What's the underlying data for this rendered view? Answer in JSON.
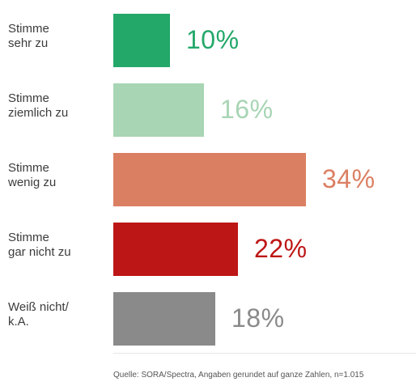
{
  "chart_data": {
    "type": "bar",
    "orientation": "horizontal",
    "categories": [
      "Stimme\nsehr zu",
      "Stimme\nziemlich zu",
      "Stimme\nwenig zu",
      "Stimme\ngar nicht zu",
      "Weiß nicht/\nk.A."
    ],
    "values": [
      10,
      16,
      34,
      22,
      18
    ],
    "value_labels": [
      "10%",
      "16%",
      "34%",
      "22%",
      "18%"
    ],
    "bar_colors": [
      "#23a86a",
      "#a8d5b4",
      "#db7f63",
      "#bd1616",
      "#8a8a8a"
    ],
    "label_colors": [
      "#23a86a",
      "#a8d5b4",
      "#db7f63",
      "#bd1616",
      "#8a8a8a"
    ],
    "xlim": [
      0,
      40
    ],
    "grid": false,
    "legend": "none"
  },
  "source": "Quelle: SORA/Spectra, Angaben gerundet auf ganze Zahlen, n=1.015"
}
